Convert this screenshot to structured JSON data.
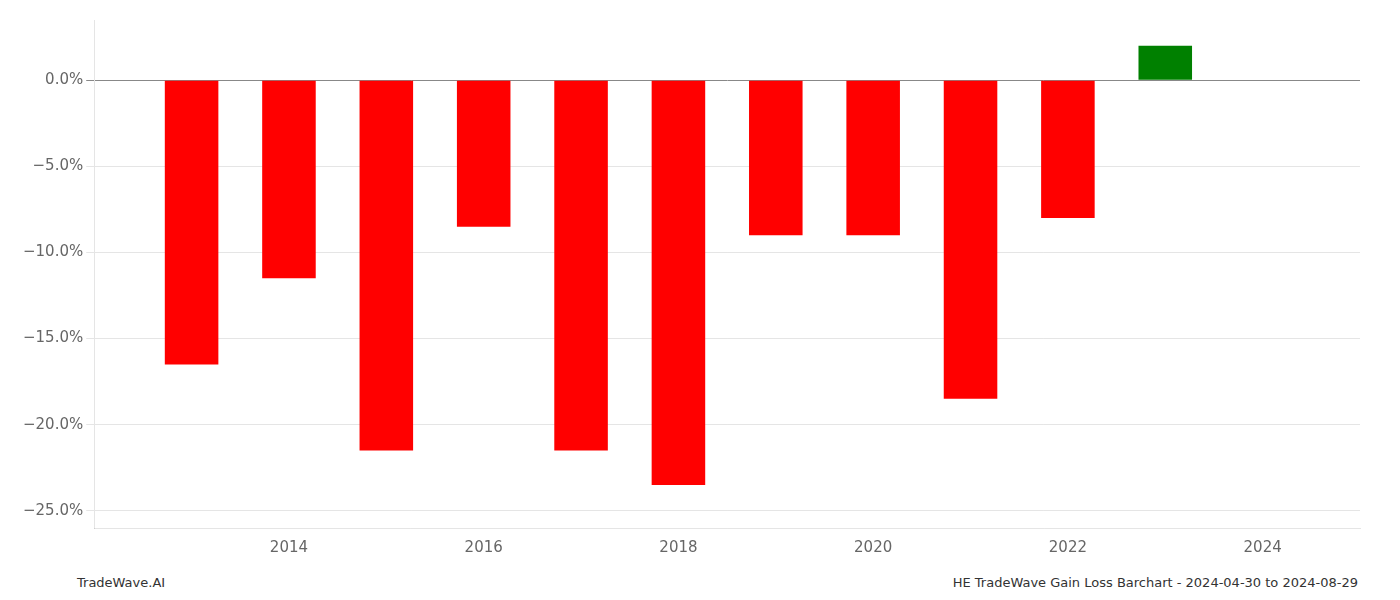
{
  "chart_data": {
    "type": "bar",
    "x": [
      2013,
      2014,
      2015,
      2016,
      2017,
      2018,
      2019,
      2020,
      2021,
      2022,
      2023
    ],
    "values": [
      -16.5,
      -11.5,
      -21.5,
      -8.5,
      -21.5,
      -23.5,
      -9.0,
      -9.0,
      -18.5,
      -8.0,
      2.0
    ],
    "colors": [
      "#ff0000",
      "#ff0000",
      "#ff0000",
      "#ff0000",
      "#ff0000",
      "#ff0000",
      "#ff0000",
      "#ff0000",
      "#ff0000",
      "#ff0000",
      "#008000"
    ],
    "xlim": [
      2012,
      2025
    ],
    "xticks": [
      2014,
      2016,
      2018,
      2020,
      2022,
      2024
    ],
    "ylim": [
      -26,
      3.5
    ],
    "yticks": [
      {
        "value": -25,
        "label": "−25.0%"
      },
      {
        "value": -20,
        "label": "−20.0%"
      },
      {
        "value": -15,
        "label": "−15.0%"
      },
      {
        "value": -10,
        "label": "−10.0%"
      },
      {
        "value": -5,
        "label": "−5.0%"
      },
      {
        "value": 0,
        "label": "0.0%"
      }
    ],
    "grid": "y",
    "annotations": [
      "TradeWave.AI",
      "HE TradeWave Gain Loss Barchart - 2024-04-30 to 2024-08-29"
    ]
  }
}
